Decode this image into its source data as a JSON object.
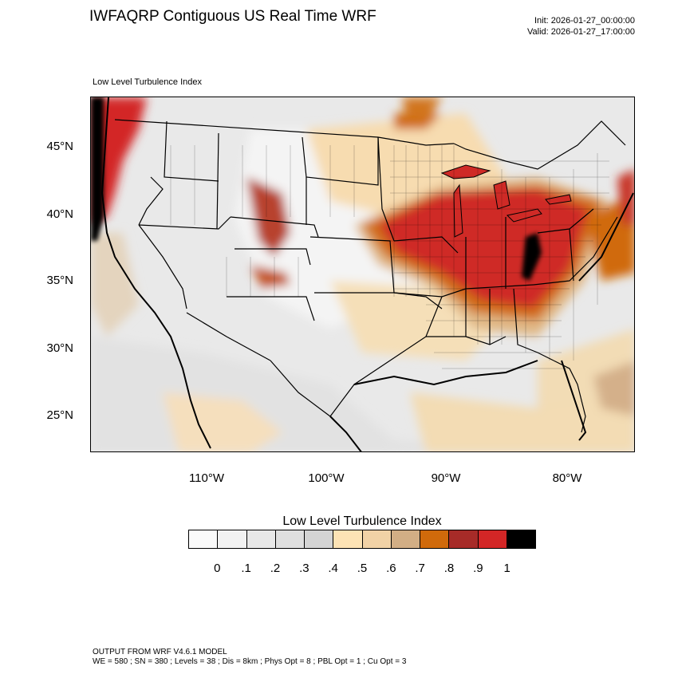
{
  "title": "IWFAQRP Contiguous US Real Time WRF",
  "init": "Init: 2026-01-27_00:00:00",
  "valid": "Valid: 2026-01-27_17:00:00",
  "field_label": "Low Level Turbulence Index",
  "map": {
    "lat_ticks": [
      "45°N",
      "40°N",
      "35°N",
      "30°N",
      "25°N"
    ],
    "lon_ticks": [
      "110°W",
      "100°W",
      "90°W",
      "80°W"
    ]
  },
  "colorbar": {
    "title": "Low Level Turbulence Index",
    "colors": [
      "#fafafa",
      "#f2f2f2",
      "#e8e8e8",
      "#dfdfdf",
      "#d4d4d4",
      "#fde3b5",
      "#f1d2a6",
      "#d2ae85",
      "#d06a0b",
      "#a72b28",
      "#d32626",
      "#000000"
    ],
    "labels": [
      "0",
      ".1",
      ".2",
      ".3",
      ".4",
      ".5",
      ".6",
      ".7",
      ".8",
      ".9",
      "1"
    ]
  },
  "footer": {
    "line1": "OUTPUT FROM WRF V4.6.1 MODEL",
    "line2": "WE = 580 ; SN = 380 ; Levels = 38 ; Dis = 8km ; Phys Opt = 8 ; PBL Opt = 1 ; Cu Opt = 3"
  }
}
